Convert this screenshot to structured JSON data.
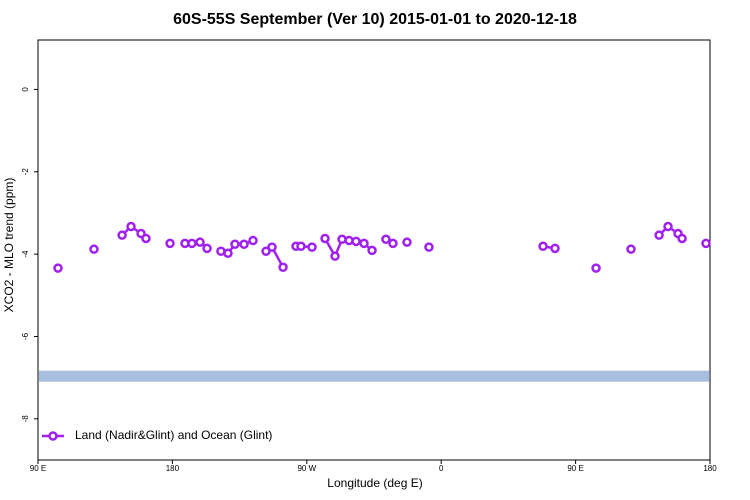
{
  "chart_data": {
    "type": "line",
    "title": "60S-55S September (Ver 10)   2015-01-01 to 2020-12-18",
    "x_label": "Longitude (deg E)",
    "y_label": "XCO2 - MLO trend (ppm)",
    "xlim": [
      90,
      540
    ],
    "ylim": [
      -9,
      1.2
    ],
    "xticks": [
      {
        "value": 90,
        "label": "90 E"
      },
      180,
      {
        "value": 270,
        "label": "90 W"
      },
      {
        "value": 360,
        "label": "0"
      },
      {
        "value": 450,
        "label": "90 E"
      },
      {
        "value": 540,
        "label": "180"
      }
    ],
    "yticks": [
      0,
      -2,
      -4,
      -6,
      -8
    ],
    "legend": "bottom-left",
    "reference_band": {
      "color": "#a9bfe0",
      "range": [
        -6.83,
        -7.1
      ]
    },
    "series": [
      {
        "name": "Land (Nadir&Glint) and Ocean (Glint)",
        "color": "#a020f0",
        "x": [
          103.4,
          127.5,
          146.3,
          152.3,
          159.0,
          162.3,
          178.4,
          188.4,
          193.1,
          198.5,
          203.2,
          212.5,
          217.2,
          221.9,
          228.0,
          234.0,
          242.7,
          246.7,
          254.1,
          262.8,
          266.1,
          273.5,
          282.2,
          288.9,
          293.6,
          298.3,
          303.0,
          308.3,
          313.7,
          323.0,
          327.7,
          337.1,
          351.8,
          428.2,
          436.2,
          463.7,
          487.1,
          505.9,
          511.9,
          518.6,
          521.3,
          537.3
        ],
        "values": [
          -4.34,
          -3.88,
          -3.54,
          -3.33,
          -3.5,
          -3.62,
          -3.74,
          -3.74,
          -3.74,
          -3.71,
          -3.86,
          -3.93,
          -3.98,
          -3.76,
          -3.76,
          -3.67,
          -3.93,
          -3.83,
          -4.32,
          -3.81,
          -3.81,
          -3.83,
          -3.62,
          -4.05,
          -3.64,
          -3.67,
          -3.69,
          -3.74,
          -3.91,
          -3.64,
          -3.74,
          -3.71,
          -3.83,
          -3.81,
          -3.86,
          -4.34,
          -3.88,
          -3.54,
          -3.33,
          -3.5,
          -3.62,
          -3.74
        ]
      }
    ]
  }
}
